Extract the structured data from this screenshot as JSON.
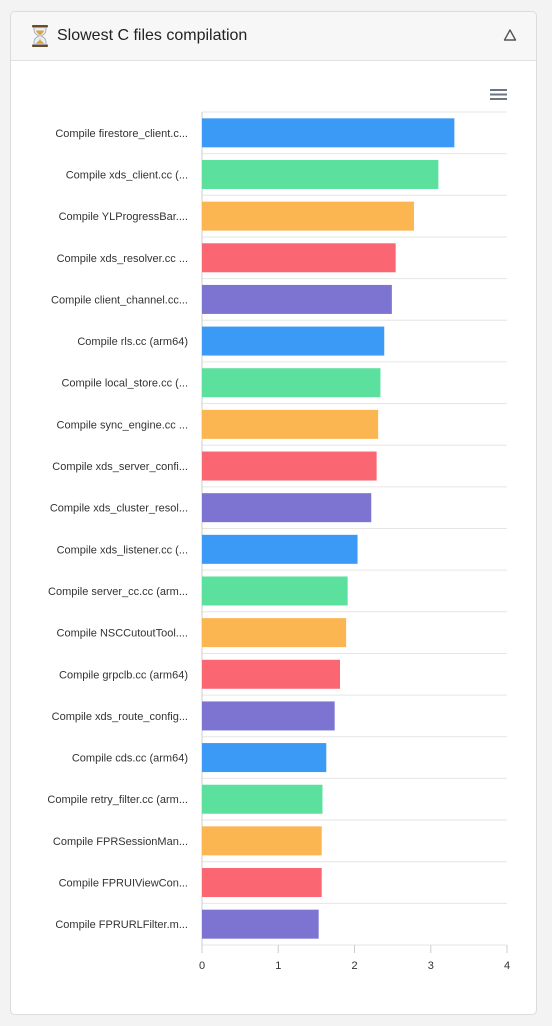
{
  "panel": {
    "title": "Slowest C files compilation",
    "icon": "hourglass-icon",
    "collapse_icon": "collapse-triangle-icon",
    "menu_icon": "hamburger-menu-icon"
  },
  "colors": {
    "palette": [
      "#3a9af5",
      "#5be09e",
      "#fbb551",
      "#fa6672",
      "#7d74d2"
    ],
    "grid": "#e6e6e6",
    "axis": "#cccccc"
  },
  "chart_data": {
    "type": "bar",
    "orientation": "horizontal",
    "categories": [
      "Compile firestore_client.c...",
      "Compile xds_client.cc (...",
      "Compile YLProgressBar....",
      "Compile xds_resolver.cc ...",
      "Compile client_channel.cc...",
      "Compile rls.cc (arm64)",
      "Compile local_store.cc (...",
      "Compile sync_engine.cc ...",
      "Compile xds_server_confi...",
      "Compile xds_cluster_resol...",
      "Compile xds_listener.cc (...",
      "Compile server_cc.cc (arm...",
      "Compile NSCCutoutTool....",
      "Compile grpclb.cc (arm64)",
      "Compile xds_route_config...",
      "Compile cds.cc (arm64)",
      "Compile retry_filter.cc (arm...",
      "Compile FPRSessionMan...",
      "Compile FPRUIViewCon...",
      "Compile FPRURLFilter.m..."
    ],
    "values": [
      3.31,
      3.1,
      2.78,
      2.54,
      2.49,
      2.39,
      2.34,
      2.31,
      2.29,
      2.22,
      2.04,
      1.91,
      1.89,
      1.81,
      1.74,
      1.63,
      1.58,
      1.57,
      1.57,
      1.53
    ],
    "xlim": [
      0,
      4
    ],
    "xticks": [
      "0",
      "1",
      "2",
      "3",
      "4"
    ],
    "title": "",
    "xlabel": "",
    "ylabel": "",
    "grid": true,
    "legend": false
  }
}
